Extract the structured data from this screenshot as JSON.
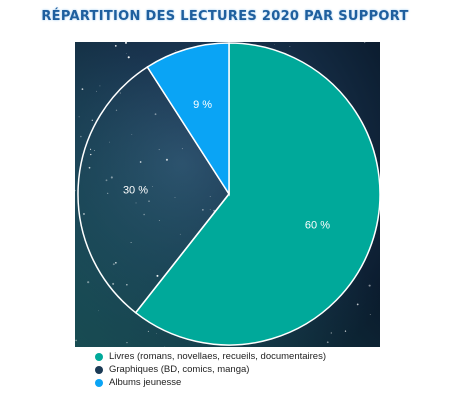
{
  "chart_data": {
    "type": "pie",
    "title": "RÉPARTITION DES LECTURES 2020 PAR SUPPORT",
    "slices": [
      {
        "label": "Livres (romans, novellaes, recueils, documentaires)",
        "value": 60,
        "data_label": "60 %",
        "color": "#00a99a"
      },
      {
        "label": "Graphiques (BD, comics, manga)",
        "value": 30,
        "data_label": "30 %",
        "color": "#1b3a55"
      },
      {
        "label": "Albums jeunesse",
        "value": 9,
        "data_label": "9 %",
        "color": "#0aa4f5"
      }
    ],
    "legend_position": "bottom-left"
  }
}
